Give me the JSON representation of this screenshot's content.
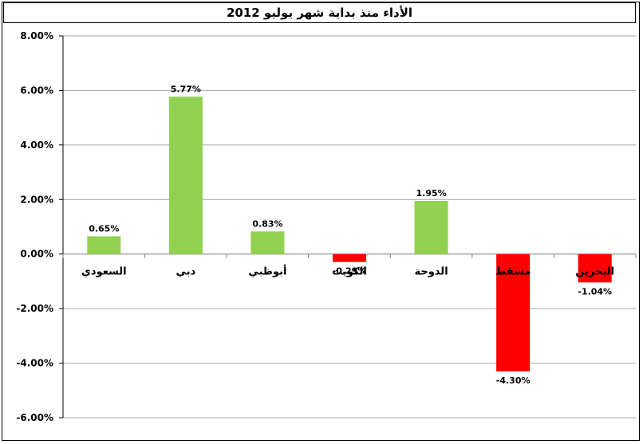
{
  "chart_data": {
    "type": "bar",
    "title": "الأداء منذ بداية شهر يوليو 2012",
    "categories": [
      "السعودي",
      "دبي",
      "أبوظبي",
      "الكويت",
      "الدوحة",
      "مسقط",
      "البحرين"
    ],
    "values": [
      0.65,
      5.77,
      0.83,
      -0.29,
      1.95,
      -4.3,
      -1.04
    ],
    "data_labels": [
      "0.65%",
      "5.77%",
      "0.83%",
      "-0.29%",
      "1.95%",
      "-4.30%",
      "-1.04%"
    ],
    "y_ticks": [
      8,
      6,
      4,
      2,
      0,
      -2,
      -4,
      -6
    ],
    "y_tick_labels": [
      "8.00%",
      "6.00%",
      "4.00%",
      "2.00%",
      "0.00%",
      "-2.00%",
      "-4.00%",
      "-6.00%"
    ],
    "ylim": [
      -6,
      8
    ],
    "xlabel": "",
    "ylabel": "",
    "grid": "horizontal",
    "legend": "none",
    "colors": {
      "positive": "#92d050",
      "negative": "#ff0000",
      "grid": "#a6a6a6"
    }
  }
}
